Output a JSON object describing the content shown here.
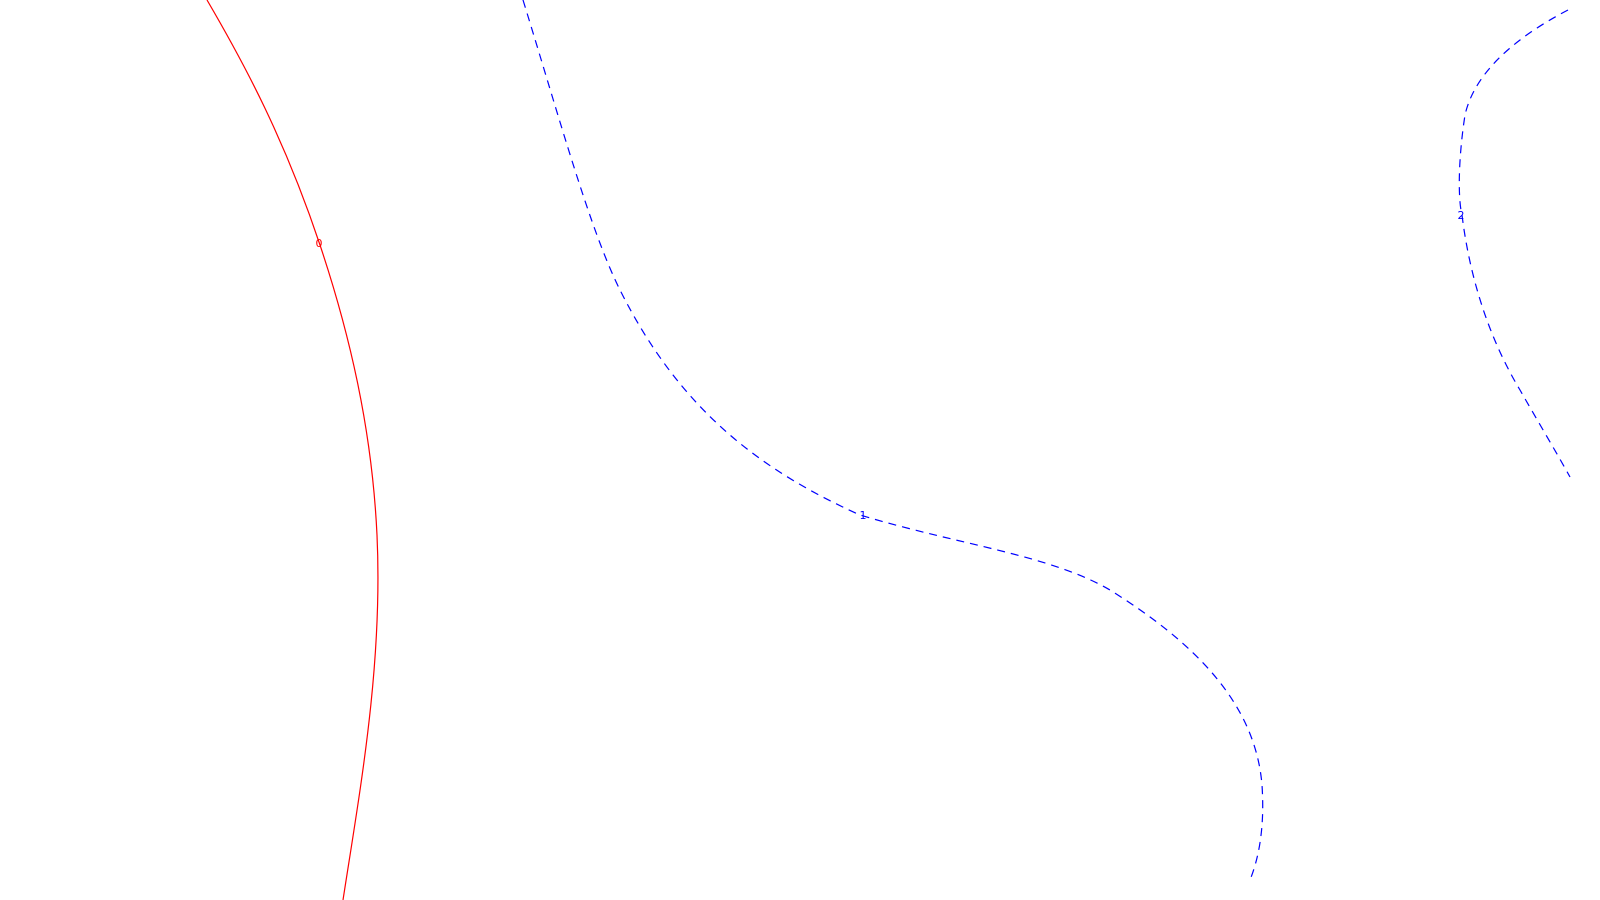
{
  "chart_data": {
    "type": "contour",
    "title": "",
    "xlabel": "",
    "ylabel": "",
    "grid": false,
    "legend": "none",
    "series": [
      {
        "level": "0",
        "color": "#ff0000",
        "line_style": "solid",
        "label": "0"
      },
      {
        "level": "1",
        "color": "#0000ff",
        "line_style": "dashed",
        "label": "1"
      },
      {
        "level": "2",
        "color": "#0000ff",
        "line_style": "dashed",
        "label": "2"
      }
    ]
  }
}
